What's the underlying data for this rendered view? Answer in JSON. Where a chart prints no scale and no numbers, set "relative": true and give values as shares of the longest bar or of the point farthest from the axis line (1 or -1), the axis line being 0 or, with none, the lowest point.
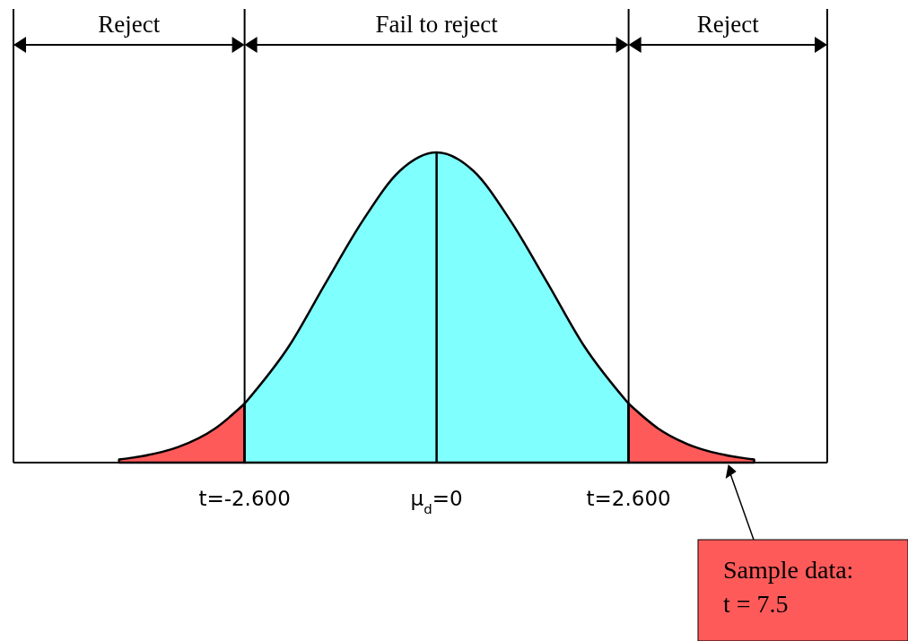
{
  "chart_data": {
    "type": "area",
    "relative": true,
    "xlim": [
      -5.73,
      5.29
    ],
    "xticks": [
      {
        "value": -2.6,
        "label": "t=-2.600"
      },
      {
        "value": 0,
        "label": "μ$_{d}$=0"
      },
      {
        "value": 2.6,
        "label": "t=2.600"
      }
    ],
    "series": [
      {
        "color": "#ff5a5a",
        "x": [
          -4.3,
          -4,
          -3.5,
          -3,
          -2.6
        ],
        "values": [
          0.01,
          0.02,
          0.05,
          0.11,
          0.19
        ]
      },
      {
        "color": "#80ffff",
        "x": [
          -2.6,
          -2,
          -1.5,
          -1,
          -0.5,
          0,
          0.5,
          1,
          1.5,
          2,
          2.6
        ],
        "values": [
          0.19,
          0.375,
          0.58,
          0.78,
          0.94,
          1,
          0.94,
          0.78,
          0.58,
          0.375,
          0.19
        ]
      },
      {
        "color": "#ff5a5a",
        "x": [
          2.6,
          3,
          3.5,
          4,
          4.3
        ],
        "values": [
          0.19,
          0.11,
          0.05,
          0.02,
          0.01
        ]
      },
      {
        "type": "line",
        "color": "#000000",
        "x": [
          0,
          0
        ],
        "values": [
          0,
          1
        ]
      }
    ],
    "ref_lines": [
      {
        "axis": "x",
        "value": -2.6
      },
      {
        "axis": "x",
        "value": 2.6
      }
    ],
    "annotations": [
      "Reject",
      "Fail to reject",
      "Reject",
      "Sample data:\nt = 7.5"
    ]
  }
}
